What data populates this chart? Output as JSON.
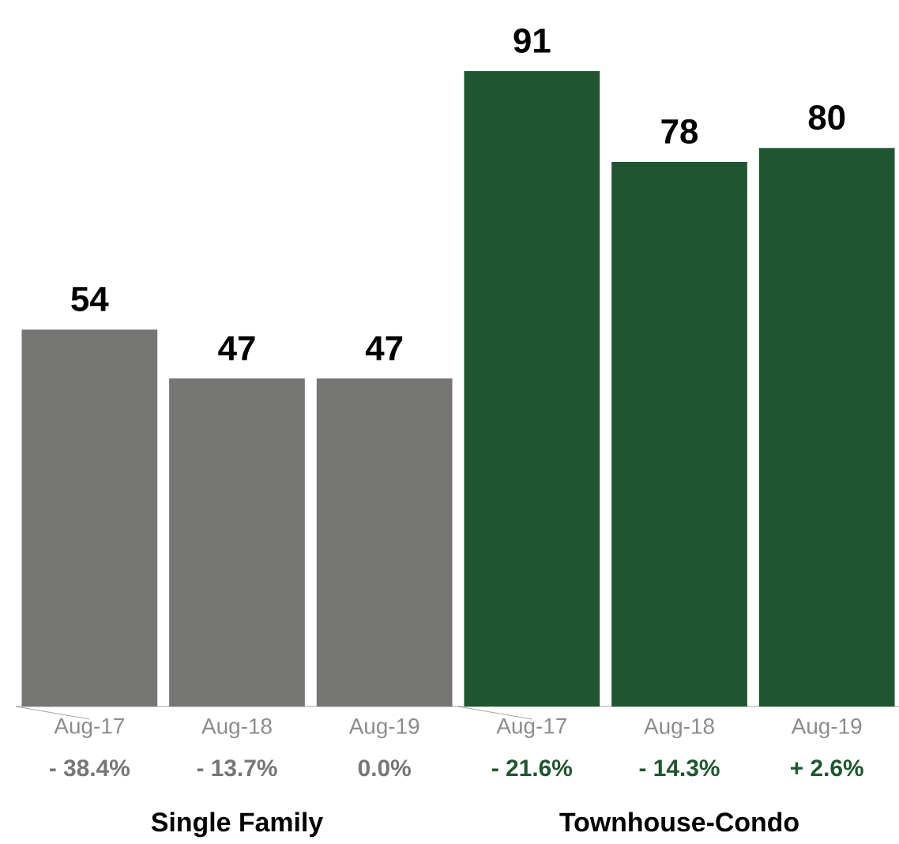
{
  "chart_data": {
    "type": "bar",
    "categories": [
      "Aug-17",
      "Aug-18",
      "Aug-19",
      "Aug-17",
      "Aug-18",
      "Aug-19"
    ],
    "values": [
      54,
      47,
      47,
      91,
      78,
      80
    ],
    "colors": [
      "#767775",
      "#767775",
      "#767775",
      "#1f5631",
      "#1f5631",
      "#1f5631"
    ],
    "data_labels": true,
    "annotations": [
      "- 38.4%",
      "- 13.7%",
      "0.0%",
      "- 21.6%",
      "- 14.3%",
      "+ 2.6%",
      "Single Family",
      "Townhouse-Condo"
    ]
  }
}
